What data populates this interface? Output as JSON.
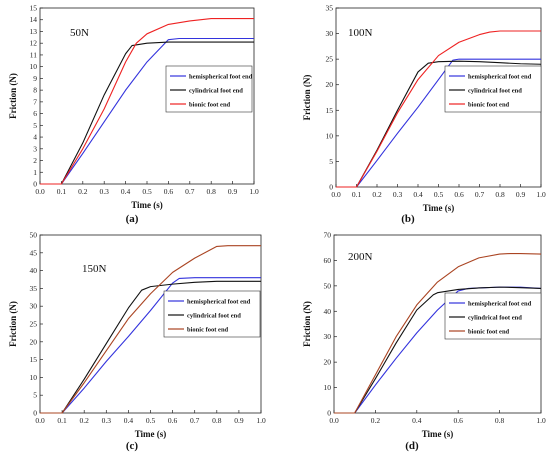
{
  "chart_data": [
    {
      "type": "line",
      "panel_label": "(a)",
      "annotation": "50N",
      "xlabel": "Time  (s)",
      "ylabel": "Friction  (N)",
      "xlim": [
        0,
        1.0
      ],
      "ylim": [
        0,
        15
      ],
      "xticks": [
        0.0,
        0.1,
        0.2,
        0.3,
        0.4,
        0.5,
        0.6,
        0.7,
        0.8,
        0.9,
        1.0
      ],
      "yticks": [
        0,
        1,
        2,
        3,
        4,
        5,
        6,
        7,
        8,
        9,
        10,
        11,
        12,
        13,
        14,
        15
      ],
      "xtick_labels": [
        "0.0",
        "0.1",
        "0.2",
        "0.3",
        "0.4",
        "0.5",
        "0.6",
        "0.7",
        "0.8",
        "0.9",
        "1.0"
      ],
      "ytick_labels": [
        "0",
        "1",
        "2",
        "3",
        "4",
        "5",
        "6",
        "7",
        "8",
        "9",
        "10",
        "11",
        "12",
        "13",
        "14",
        "15"
      ],
      "legend_position": "center-right",
      "series": [
        {
          "name": "hemispherical foot end",
          "color": "#3333dd",
          "x": [
            0,
            0.1,
            0.2,
            0.3,
            0.4,
            0.5,
            0.6,
            0.65,
            0.7,
            0.8,
            0.9,
            1.0
          ],
          "y": [
            0,
            0,
            2.6,
            5.3,
            8.0,
            10.4,
            12.3,
            12.4,
            12.4,
            12.4,
            12.4,
            12.4
          ]
        },
        {
          "name": "cylindrical foot end",
          "color": "#111111",
          "x": [
            0,
            0.1,
            0.2,
            0.3,
            0.4,
            0.43,
            0.5,
            0.6,
            0.7,
            0.8,
            0.9,
            1.0
          ],
          "y": [
            0,
            0,
            3.5,
            7.6,
            11.1,
            11.8,
            12.0,
            12.1,
            12.1,
            12.1,
            12.1,
            12.1
          ]
        },
        {
          "name": "bionic foot end",
          "color": "#ee2222",
          "x": [
            0,
            0.1,
            0.2,
            0.3,
            0.4,
            0.45,
            0.5,
            0.6,
            0.7,
            0.8,
            0.9,
            1.0
          ],
          "y": [
            0,
            0,
            3.0,
            6.4,
            10.4,
            12.0,
            12.8,
            13.6,
            13.9,
            14.1,
            14.1,
            14.1
          ]
        }
      ]
    },
    {
      "type": "line",
      "panel_label": "(b)",
      "annotation": "100N",
      "xlabel": "Time  (s)",
      "ylabel": "Friction  (N)",
      "xlim": [
        0,
        1.0
      ],
      "ylim": [
        0,
        35
      ],
      "xticks": [
        0.0,
        0.1,
        0.2,
        0.3,
        0.4,
        0.5,
        0.6,
        0.7,
        0.8,
        0.9,
        1.0
      ],
      "yticks": [
        0,
        5,
        10,
        15,
        20,
        25,
        30,
        35
      ],
      "xtick_labels": [
        "0.0",
        "0.1",
        "0.2",
        "0.3",
        "0.4",
        "0.5",
        "0.6",
        "0.7",
        "0.8",
        "0.9",
        "1.0"
      ],
      "ytick_labels": [
        "0",
        "5",
        "10",
        "15",
        "20",
        "25",
        "30",
        "35"
      ],
      "legend_position": "center-right",
      "series": [
        {
          "name": "hemispherical foot end",
          "color": "#3333dd",
          "x": [
            0,
            0.1,
            0.2,
            0.3,
            0.4,
            0.5,
            0.57,
            0.6,
            0.7,
            0.8,
            0.9,
            1.0
          ],
          "y": [
            0,
            0,
            5.2,
            10.5,
            15.6,
            21.0,
            24.8,
            25.0,
            25.0,
            25.0,
            25.0,
            25.0
          ]
        },
        {
          "name": "cylindrical foot end",
          "color": "#111111",
          "x": [
            0,
            0.1,
            0.2,
            0.3,
            0.4,
            0.45,
            0.5,
            0.6,
            0.7,
            0.8,
            0.9,
            1.0
          ],
          "y": [
            0,
            0,
            7.2,
            15.0,
            22.5,
            24.2,
            24.5,
            24.6,
            24.5,
            24.3,
            24.1,
            24.0
          ]
        },
        {
          "name": "bionic foot end",
          "color": "#ee2222",
          "x": [
            0,
            0.1,
            0.2,
            0.3,
            0.4,
            0.5,
            0.6,
            0.7,
            0.75,
            0.8,
            0.9,
            1.0
          ],
          "y": [
            0,
            0,
            7.0,
            14.5,
            21.0,
            25.7,
            28.3,
            29.8,
            30.3,
            30.5,
            30.5,
            30.5
          ]
        }
      ]
    },
    {
      "type": "line",
      "panel_label": "(c)",
      "annotation": "150N",
      "xlabel": "Time  (s)",
      "ylabel": "Friction  (N)",
      "xlim": [
        0,
        1.0
      ],
      "ylim": [
        0,
        50
      ],
      "xticks": [
        0.0,
        0.1,
        0.2,
        0.3,
        0.4,
        0.5,
        0.6,
        0.7,
        0.8,
        0.9,
        1.0
      ],
      "yticks": [
        0,
        5,
        10,
        15,
        20,
        25,
        30,
        35,
        40,
        45,
        50
      ],
      "xtick_labels": [
        "0.0",
        "0.1",
        "0.2",
        "0.3",
        "0.4",
        "0.5",
        "0.6",
        "0.7",
        "0.8",
        "0.9",
        "1.0"
      ],
      "ytick_labels": [
        "0",
        "5",
        "10",
        "15",
        "20",
        "25",
        "30",
        "35",
        "40",
        "45",
        "50"
      ],
      "legend_position": "center-right",
      "series": [
        {
          "name": "hemispherical foot end",
          "color": "#3333dd",
          "x": [
            0,
            0.1,
            0.2,
            0.3,
            0.4,
            0.5,
            0.6,
            0.63,
            0.7,
            0.8,
            0.9,
            1.0
          ],
          "y": [
            0,
            0,
            7.0,
            14.5,
            21.5,
            28.8,
            36.5,
            37.8,
            38.0,
            38.0,
            38.0,
            38.0
          ]
        },
        {
          "name": "cylindrical foot end",
          "color": "#111111",
          "x": [
            0,
            0.1,
            0.2,
            0.3,
            0.4,
            0.46,
            0.5,
            0.6,
            0.7,
            0.8,
            0.9,
            1.0
          ],
          "y": [
            0,
            0,
            9.5,
            19.5,
            29.5,
            34.5,
            35.5,
            36.2,
            36.7,
            37.0,
            37.0,
            37.0
          ]
        },
        {
          "name": "bionic foot end",
          "color": "#aa4422",
          "x": [
            0,
            0.1,
            0.2,
            0.3,
            0.4,
            0.5,
            0.6,
            0.7,
            0.8,
            0.85,
            0.9,
            1.0
          ],
          "y": [
            0,
            0,
            8.5,
            17.5,
            26.5,
            33.5,
            39.5,
            43.5,
            46.8,
            47.0,
            47.0,
            47.0
          ]
        }
      ]
    },
    {
      "type": "line",
      "panel_label": "(d)",
      "annotation": "200N",
      "xlabel": "Time  (s)",
      "ylabel": "Friction  (N)",
      "xlim": [
        0,
        1.0
      ],
      "ylim": [
        0,
        70
      ],
      "xticks": [
        0.0,
        0.2,
        0.4,
        0.6,
        0.8,
        1.0
      ],
      "yticks": [
        0,
        10,
        20,
        30,
        40,
        50,
        60,
        70
      ],
      "xtick_labels": [
        "0.0",
        "0.2",
        "0.4",
        "0.6",
        "0.8",
        "1.0"
      ],
      "ytick_labels": [
        "0",
        "10",
        "20",
        "30",
        "40",
        "50",
        "60",
        "70"
      ],
      "legend_position": "center-right",
      "series": [
        {
          "name": "hemispherical foot end",
          "color": "#3333dd",
          "x": [
            0,
            0.1,
            0.2,
            0.3,
            0.4,
            0.5,
            0.6,
            0.65,
            0.7,
            0.8,
            0.9,
            1.0
          ],
          "y": [
            0,
            0,
            11.0,
            21.5,
            31.5,
            40.5,
            48.0,
            49.0,
            49.2,
            49.5,
            49.5,
            49.0
          ]
        },
        {
          "name": "cylindrical foot end",
          "color": "#111111",
          "x": [
            0,
            0.1,
            0.2,
            0.3,
            0.4,
            0.48,
            0.5,
            0.6,
            0.7,
            0.8,
            0.9,
            1.0
          ],
          "y": [
            0,
            0,
            13.5,
            27.5,
            40.5,
            46.5,
            47.3,
            48.6,
            49.2,
            49.5,
            49.3,
            49.0
          ]
        },
        {
          "name": "bionic foot end",
          "color": "#aa4422",
          "x": [
            0,
            0.1,
            0.2,
            0.3,
            0.4,
            0.5,
            0.6,
            0.7,
            0.8,
            0.85,
            0.9,
            1.0
          ],
          "y": [
            0,
            0,
            15.0,
            30.0,
            42.5,
            51.5,
            57.5,
            61.0,
            62.5,
            62.7,
            62.7,
            62.5
          ]
        }
      ]
    }
  ]
}
